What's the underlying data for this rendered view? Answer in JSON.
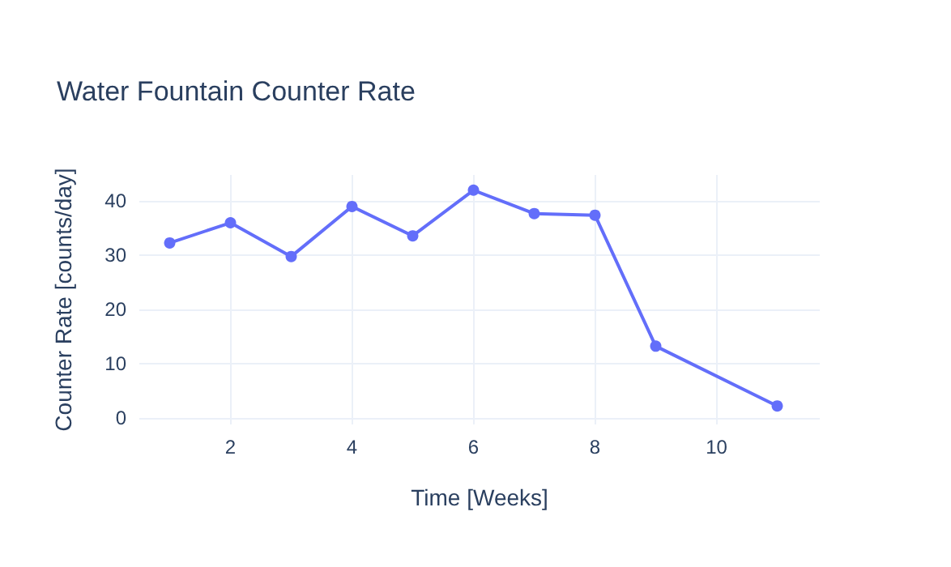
{
  "chart_data": {
    "type": "line",
    "title": "Water Fountain Counter Rate",
    "xlabel": "Time [Weeks]",
    "ylabel": "Counter Rate [counts/day]",
    "x": [
      1,
      2,
      3,
      4,
      5,
      6,
      7,
      8,
      9,
      11
    ],
    "series": [
      {
        "color": "#636efa",
        "values": [
          32.2,
          35.9,
          29.7,
          38.9,
          33.5,
          41.9,
          37.6,
          37.3,
          13.2,
          2.2
        ]
      }
    ],
    "xlim": [
      0.5,
      11.7
    ],
    "xticks": [
      2,
      4,
      6,
      8,
      10
    ],
    "ylim": [
      -1.2,
      44.7
    ],
    "yticks": [
      0,
      10,
      20,
      30,
      40
    ],
    "grid": true,
    "marker": "circle",
    "line_style": "solid"
  }
}
